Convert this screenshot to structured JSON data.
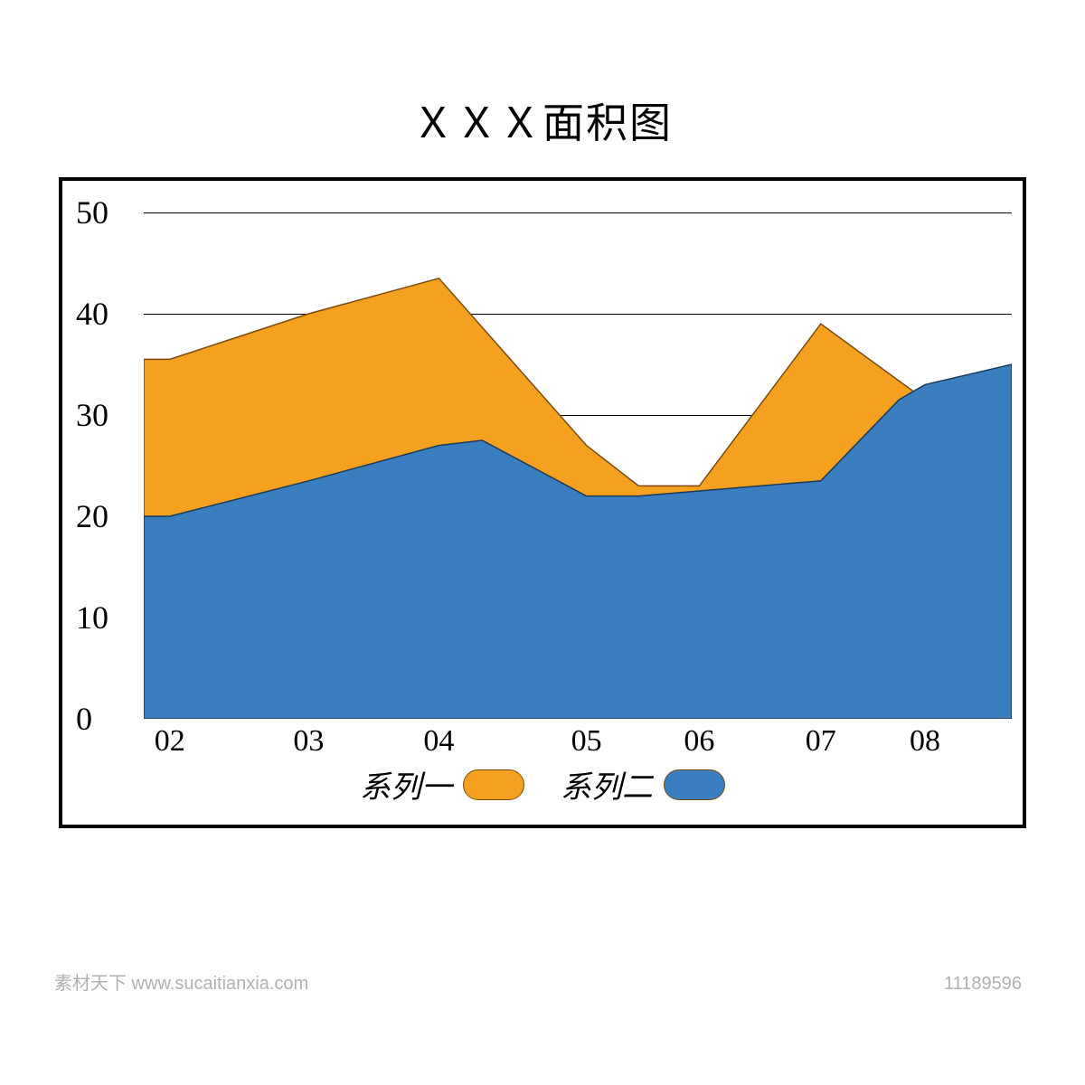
{
  "chart": {
    "type": "area",
    "title": "ＸＸＸ面积图",
    "title_fontsize": 46,
    "background_color": "#ffffff",
    "border_color": "#000000",
    "border_width": 4,
    "y_axis": {
      "ticks": [
        0,
        10,
        20,
        30,
        40,
        50
      ],
      "tick_labels": [
        "0",
        "10",
        "20",
        "30",
        "40",
        "50"
      ],
      "min": 0,
      "max": 50,
      "fontsize": 36
    },
    "x_axis": {
      "tick_labels": [
        "02",
        "03",
        "04",
        "05",
        "06",
        "07",
        "08"
      ],
      "positions": [
        0.03,
        0.19,
        0.34,
        0.51,
        0.64,
        0.78,
        0.9
      ],
      "fontsize": 34
    },
    "gridlines_y": [
      50,
      40,
      30
    ],
    "gridline_color": "#000000",
    "series1": {
      "name": "系列一",
      "label": "系列一",
      "color": "#f5a11f",
      "stroke": "#7a4a10",
      "x": [
        0.0,
        0.03,
        0.19,
        0.34,
        0.51,
        0.57,
        0.64,
        0.78,
        0.9,
        1.0
      ],
      "y": [
        35.5,
        35.5,
        40,
        43.5,
        27,
        23,
        23,
        39,
        31.5,
        35
      ]
    },
    "series2": {
      "name": "系列二",
      "label": "系列二",
      "color": "#3a7ebf",
      "stroke": "#1a3a5a",
      "x": [
        0.0,
        0.03,
        0.19,
        0.34,
        0.39,
        0.51,
        0.57,
        0.64,
        0.78,
        0.87,
        0.9,
        1.0
      ],
      "y": [
        20,
        20,
        23.5,
        27,
        27.5,
        22,
        22,
        22.5,
        23.5,
        31.5,
        33,
        35
      ]
    },
    "legend": {
      "series1_label": "系列一",
      "series2_label": "系列二",
      "swatch1_color": "#f5a11f",
      "swatch2_color": "#3a7ebf",
      "swatch_border": "#7a4a10",
      "label_fontsize": 34
    }
  },
  "footer_watermark": "素材天下 www.sucaitianxia.com",
  "footer_id": "11189596"
}
